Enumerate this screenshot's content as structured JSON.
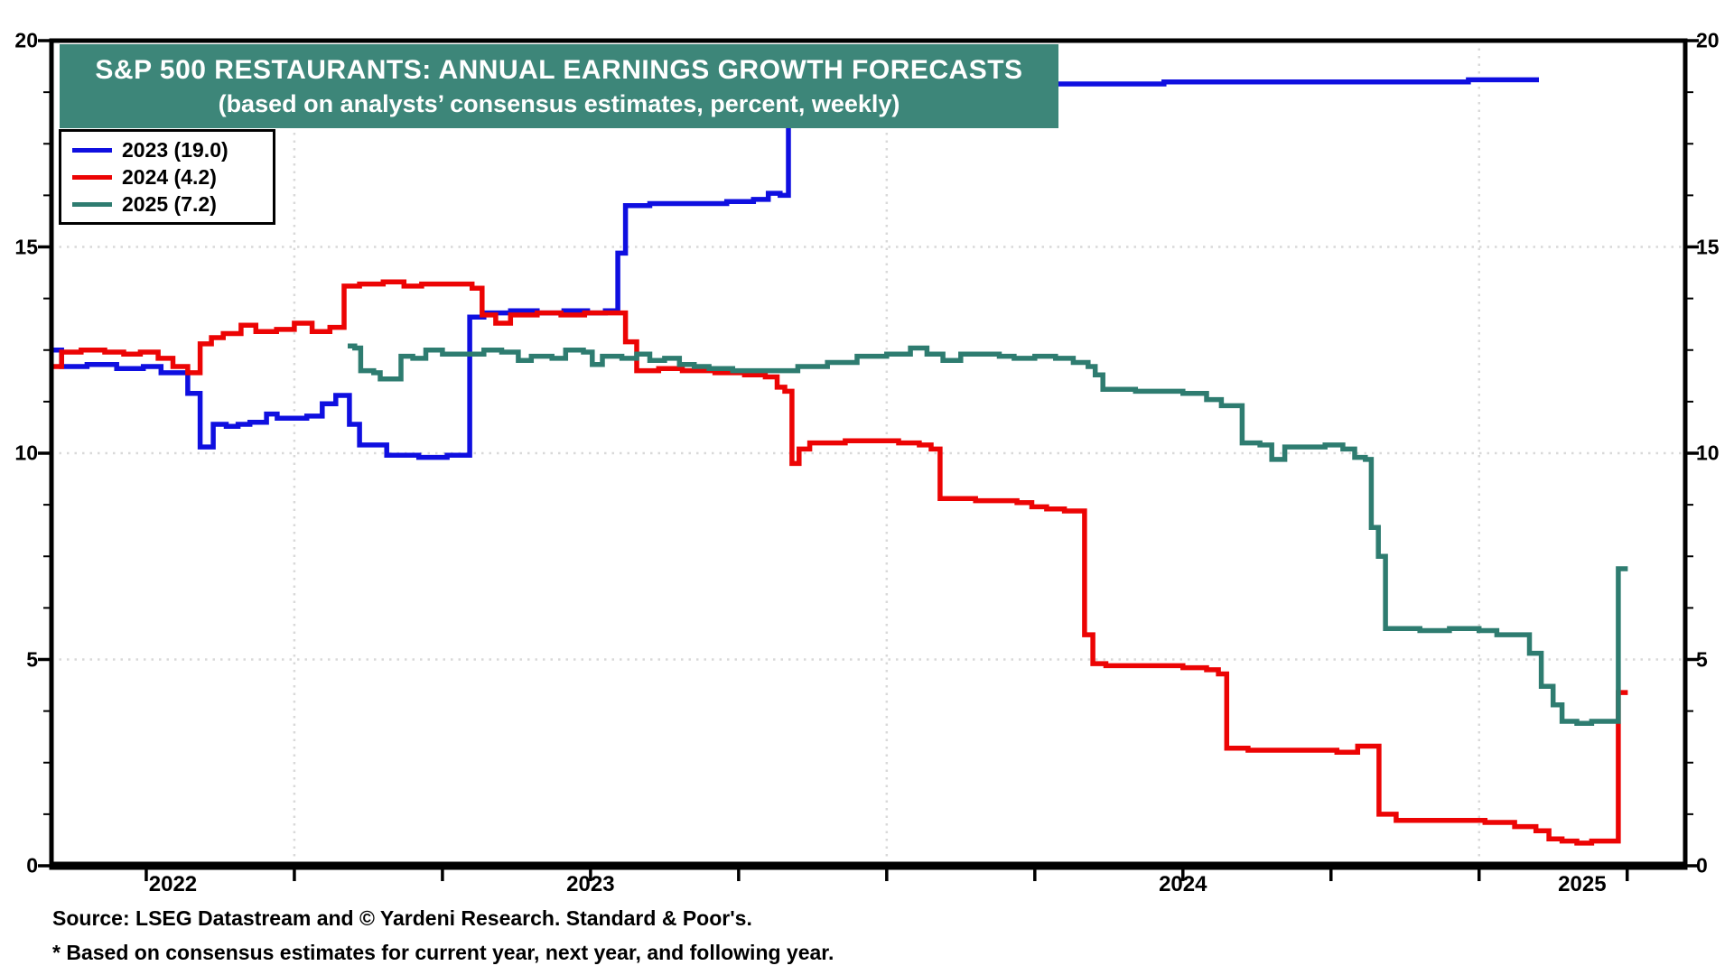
{
  "title": {
    "line1": "S&P 500 RESTAURANTS: ANNUAL EARNINGS GROWTH FORECASTS",
    "line2": "(based on analysts’ consensus estimates, percent, weekly)",
    "banner_color": "#3D8679"
  },
  "legend": {
    "items": [
      {
        "label": "2023 (19.0)",
        "color": "#0F0FE0"
      },
      {
        "label": "2024 (4.2)",
        "color": "#EC0404"
      },
      {
        "label": "2025 (7.2)",
        "color": "#2E7C70"
      }
    ]
  },
  "source": {
    "line1": "Source: LSEG Datastream and © Yardeni Research. Standard & Poor's.",
    "line2": "* Based on consensus estimates for current year, next year, and following year."
  },
  "chart_data": {
    "type": "line",
    "style": "weekly step series",
    "title": "S&P 500 Restaurants: Annual Earnings Growth Forecasts (percent)",
    "x_domain": [
      2022.59,
      2025.348
    ],
    "ylim": [
      0,
      20
    ],
    "y_major_ticks": [
      0,
      5,
      10,
      15,
      20
    ],
    "y_tick_labels": [
      "0",
      "5",
      "10",
      "15",
      "20"
    ],
    "y_minor_step": 1.25,
    "x_year_labels": [
      "2022",
      "2023",
      "2024",
      "2025"
    ],
    "x_quarter_ticks": [
      2022.75,
      2023.0,
      2023.25,
      2023.5,
      2023.75,
      2024.0,
      2024.25,
      2024.5,
      2024.75,
      2025.0,
      2025.25
    ],
    "grid": {
      "h_values": [
        5,
        10,
        15
      ],
      "v_values": [
        2023.0,
        2024.0,
        2025.0
      ],
      "color": "#D9D9D9"
    },
    "legend_position": "top-left",
    "series": [
      {
        "name": "2023",
        "final_value": 19.0,
        "color": "#0F0FE0",
        "points": [
          [
            2022.59,
            12.5
          ],
          [
            2022.607,
            12.1
          ],
          [
            2022.65,
            12.15
          ],
          [
            2022.7,
            12.05
          ],
          [
            2022.745,
            12.1
          ],
          [
            2022.775,
            11.95
          ],
          [
            2022.82,
            11.45
          ],
          [
            2022.841,
            10.15
          ],
          [
            2022.863,
            10.7
          ],
          [
            2022.885,
            10.65
          ],
          [
            2022.905,
            10.7
          ],
          [
            2022.925,
            10.75
          ],
          [
            2022.953,
            10.95
          ],
          [
            2022.971,
            10.85
          ],
          [
            2023.021,
            10.9
          ],
          [
            2023.047,
            11.2
          ],
          [
            2023.07,
            11.4
          ],
          [
            2023.093,
            10.7
          ],
          [
            2023.11,
            10.2
          ],
          [
            2023.156,
            9.95
          ],
          [
            2023.21,
            9.9
          ],
          [
            2023.258,
            9.95
          ],
          [
            2023.296,
            13.3
          ],
          [
            2023.32,
            13.4
          ],
          [
            2023.365,
            13.45
          ],
          [
            2023.41,
            13.4
          ],
          [
            2023.455,
            13.45
          ],
          [
            2023.495,
            13.4
          ],
          [
            2023.525,
            13.45
          ],
          [
            2023.546,
            14.85
          ],
          [
            2023.559,
            16.0
          ],
          [
            2023.6,
            16.05
          ],
          [
            2023.69,
            16.05
          ],
          [
            2023.73,
            16.1
          ],
          [
            2023.775,
            16.15
          ],
          [
            2023.8,
            16.3
          ],
          [
            2023.82,
            16.25
          ],
          [
            2023.834,
            19.05
          ],
          [
            2024.15,
            19.05
          ],
          [
            2024.25,
            18.95
          ],
          [
            2024.468,
            19.0
          ],
          [
            2024.982,
            19.05
          ],
          [
            2025.101,
            19.05
          ]
        ]
      },
      {
        "name": "2024",
        "final_value": 4.2,
        "color": "#EC0404",
        "points": [
          [
            2022.59,
            12.1
          ],
          [
            2022.607,
            12.45
          ],
          [
            2022.64,
            12.5
          ],
          [
            2022.68,
            12.45
          ],
          [
            2022.712,
            12.4
          ],
          [
            2022.74,
            12.45
          ],
          [
            2022.77,
            12.3
          ],
          [
            2022.795,
            12.1
          ],
          [
            2022.82,
            11.95
          ],
          [
            2022.841,
            12.65
          ],
          [
            2022.86,
            12.8
          ],
          [
            2022.88,
            12.9
          ],
          [
            2022.91,
            13.1
          ],
          [
            2022.935,
            12.95
          ],
          [
            2022.97,
            13.0
          ],
          [
            2023.0,
            13.15
          ],
          [
            2023.03,
            12.95
          ],
          [
            2023.06,
            13.05
          ],
          [
            2023.084,
            14.05
          ],
          [
            2023.11,
            14.1
          ],
          [
            2023.15,
            14.15
          ],
          [
            2023.185,
            14.05
          ],
          [
            2023.215,
            14.1
          ],
          [
            2023.28,
            14.1
          ],
          [
            2023.3,
            14.0
          ],
          [
            2023.317,
            13.35
          ],
          [
            2023.34,
            13.15
          ],
          [
            2023.365,
            13.35
          ],
          [
            2023.41,
            13.4
          ],
          [
            2023.45,
            13.35
          ],
          [
            2023.49,
            13.4
          ],
          [
            2023.53,
            13.4
          ],
          [
            2023.559,
            12.7
          ],
          [
            2023.578,
            12.0
          ],
          [
            2023.615,
            12.05
          ],
          [
            2023.655,
            12.0
          ],
          [
            2023.71,
            11.95
          ],
          [
            2023.76,
            11.9
          ],
          [
            2023.795,
            11.85
          ],
          [
            2023.815,
            11.6
          ],
          [
            2023.828,
            11.5
          ],
          [
            2023.84,
            9.75
          ],
          [
            2023.852,
            10.1
          ],
          [
            2023.87,
            10.25
          ],
          [
            2023.93,
            10.3
          ],
          [
            2024.02,
            10.25
          ],
          [
            2024.055,
            10.2
          ],
          [
            2024.075,
            10.1
          ],
          [
            2024.09,
            8.9
          ],
          [
            2024.15,
            8.85
          ],
          [
            2024.22,
            8.8
          ],
          [
            2024.245,
            8.7
          ],
          [
            2024.27,
            8.65
          ],
          [
            2024.3,
            8.6
          ],
          [
            2024.334,
            5.6
          ],
          [
            2024.348,
            4.9
          ],
          [
            2024.37,
            4.85
          ],
          [
            2024.45,
            4.85
          ],
          [
            2024.5,
            4.8
          ],
          [
            2024.54,
            4.75
          ],
          [
            2024.56,
            4.65
          ],
          [
            2024.574,
            2.85
          ],
          [
            2024.61,
            2.8
          ],
          [
            2024.7,
            2.8
          ],
          [
            2024.76,
            2.75
          ],
          [
            2024.795,
            2.9
          ],
          [
            2024.831,
            1.25
          ],
          [
            2024.86,
            1.1
          ],
          [
            2024.96,
            1.1
          ],
          [
            2025.01,
            1.05
          ],
          [
            2025.06,
            0.95
          ],
          [
            2025.096,
            0.85
          ],
          [
            2025.118,
            0.65
          ],
          [
            2025.14,
            0.6
          ],
          [
            2025.165,
            0.55
          ],
          [
            2025.19,
            0.6
          ],
          [
            2025.235,
            4.2
          ],
          [
            2025.251,
            4.2
          ]
        ]
      },
      {
        "name": "2025",
        "final_value": 7.2,
        "color": "#2E7C70",
        "points": [
          [
            2023.09,
            12.6
          ],
          [
            2023.102,
            12.55
          ],
          [
            2023.112,
            12.0
          ],
          [
            2023.134,
            11.95
          ],
          [
            2023.145,
            11.8
          ],
          [
            2023.168,
            11.8
          ],
          [
            2023.18,
            12.35
          ],
          [
            2023.2,
            12.3
          ],
          [
            2023.222,
            12.5
          ],
          [
            2023.25,
            12.4
          ],
          [
            2023.29,
            12.4
          ],
          [
            2023.32,
            12.5
          ],
          [
            2023.35,
            12.45
          ],
          [
            2023.378,
            12.25
          ],
          [
            2023.4,
            12.35
          ],
          [
            2023.435,
            12.3
          ],
          [
            2023.458,
            12.5
          ],
          [
            2023.488,
            12.45
          ],
          [
            2023.503,
            12.15
          ],
          [
            2023.52,
            12.35
          ],
          [
            2023.553,
            12.3
          ],
          [
            2023.578,
            12.4
          ],
          [
            2023.6,
            12.25
          ],
          [
            2023.625,
            12.3
          ],
          [
            2023.65,
            12.15
          ],
          [
            2023.675,
            12.1
          ],
          [
            2023.7,
            12.05
          ],
          [
            2023.74,
            12.0
          ],
          [
            2023.8,
            12.0
          ],
          [
            2023.85,
            12.1
          ],
          [
            2023.9,
            12.2
          ],
          [
            2023.95,
            12.35
          ],
          [
            2024.0,
            12.4
          ],
          [
            2024.04,
            12.55
          ],
          [
            2024.068,
            12.4
          ],
          [
            2024.095,
            12.25
          ],
          [
            2024.125,
            12.4
          ],
          [
            2024.19,
            12.35
          ],
          [
            2024.215,
            12.3
          ],
          [
            2024.25,
            12.35
          ],
          [
            2024.285,
            12.3
          ],
          [
            2024.315,
            12.2
          ],
          [
            2024.34,
            12.1
          ],
          [
            2024.352,
            11.9
          ],
          [
            2024.365,
            11.55
          ],
          [
            2024.42,
            11.5
          ],
          [
            2024.5,
            11.45
          ],
          [
            2024.54,
            11.3
          ],
          [
            2024.565,
            11.15
          ],
          [
            2024.6,
            10.25
          ],
          [
            2024.63,
            10.2
          ],
          [
            2024.65,
            9.85
          ],
          [
            2024.672,
            10.15
          ],
          [
            2024.72,
            10.15
          ],
          [
            2024.74,
            10.2
          ],
          [
            2024.77,
            10.1
          ],
          [
            2024.79,
            9.9
          ],
          [
            2024.808,
            9.85
          ],
          [
            2024.818,
            8.2
          ],
          [
            2024.83,
            7.5
          ],
          [
            2024.842,
            5.75
          ],
          [
            2024.9,
            5.7
          ],
          [
            2024.95,
            5.75
          ],
          [
            2025.0,
            5.7
          ],
          [
            2025.03,
            5.6
          ],
          [
            2025.07,
            5.6
          ],
          [
            2025.085,
            5.15
          ],
          [
            2025.105,
            4.35
          ],
          [
            2025.125,
            3.9
          ],
          [
            2025.14,
            3.5
          ],
          [
            2025.165,
            3.45
          ],
          [
            2025.19,
            3.5
          ],
          [
            2025.235,
            7.2
          ],
          [
            2025.251,
            7.2
          ]
        ]
      }
    ]
  }
}
